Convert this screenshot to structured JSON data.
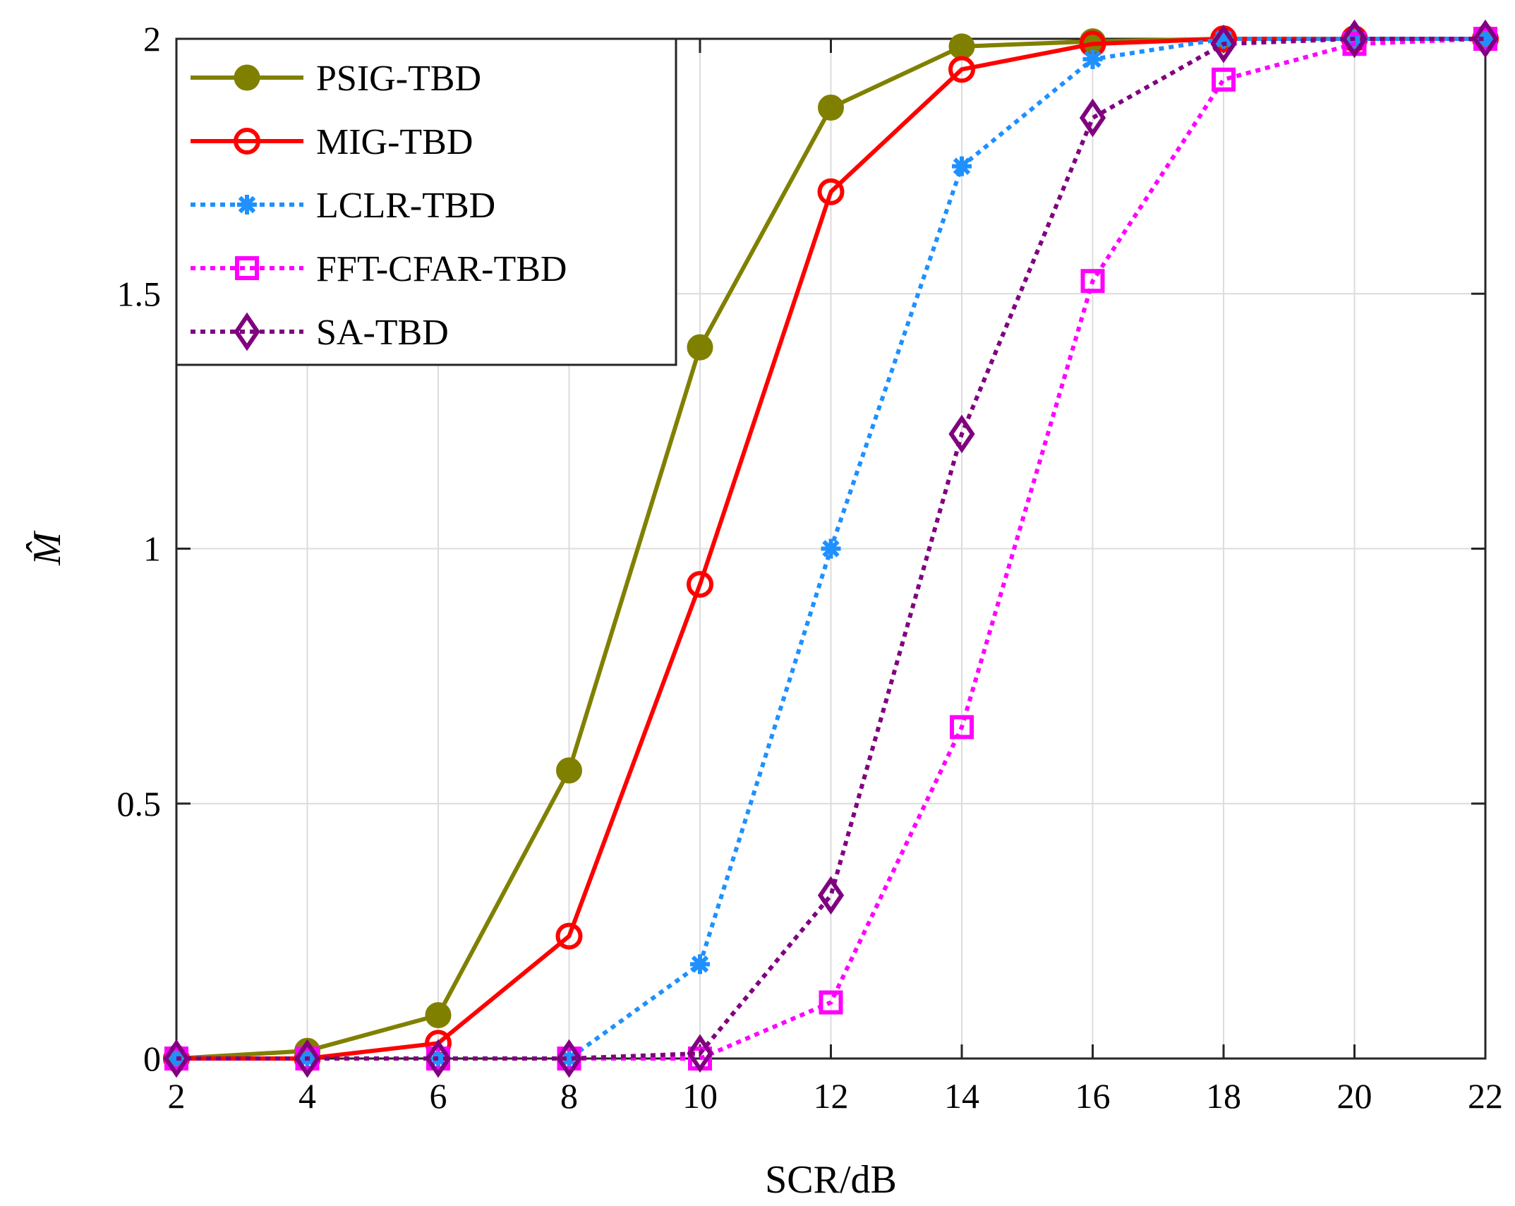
{
  "chart_data": {
    "type": "line",
    "title": "",
    "xlabel": "SCR/dB",
    "ylabel": "M̂",
    "xlim": [
      2,
      22
    ],
    "ylim": [
      0,
      2
    ],
    "grid": true,
    "legend_position": "top-left",
    "x_ticks": [
      "2",
      "4",
      "6",
      "8",
      "10",
      "12",
      "14",
      "16",
      "18",
      "20",
      "22"
    ],
    "y_ticks": [
      "0",
      "0.5",
      "1",
      "1.5",
      "2"
    ],
    "y_tick_values": [
      0,
      0.5,
      1,
      1.5,
      2
    ],
    "x": [
      2,
      4,
      6,
      8,
      10,
      12,
      14,
      16,
      18,
      20,
      22
    ],
    "series": [
      {
        "name": "PSIG-TBD",
        "color": "#808000",
        "dash": "solid",
        "marker": "filled-circle",
        "values": [
          0.0,
          0.015,
          0.085,
          0.565,
          1.395,
          1.865,
          1.985,
          1.995,
          2.0,
          2.0,
          2.0
        ]
      },
      {
        "name": "MIG-TBD",
        "color": "#ff0000",
        "dash": "solid",
        "marker": "open-circle",
        "values": [
          0.0,
          0.0,
          0.03,
          0.24,
          0.93,
          1.7,
          1.94,
          1.99,
          2.0,
          2.0,
          2.0
        ]
      },
      {
        "name": "LCLR-TBD",
        "color": "#1e90ff",
        "dash": "dotted",
        "marker": "asterisk",
        "values": [
          0.0,
          0.0,
          0.0,
          0.0,
          0.185,
          1.0,
          1.75,
          1.96,
          2.0,
          2.0,
          2.0
        ]
      },
      {
        "name": "FFT-CFAR-TBD",
        "color": "#ff00ff",
        "dash": "dotted",
        "marker": "open-square",
        "values": [
          0.0,
          0.0,
          0.0,
          0.0,
          0.0,
          0.11,
          0.65,
          1.525,
          1.92,
          1.99,
          2.0
        ]
      },
      {
        "name": "SA-TBD",
        "color": "#800080",
        "dash": "dotted",
        "marker": "open-diamond",
        "values": [
          0.0,
          0.0,
          0.0,
          0.0,
          0.01,
          0.32,
          1.225,
          1.845,
          1.99,
          2.0,
          2.0
        ]
      }
    ]
  }
}
